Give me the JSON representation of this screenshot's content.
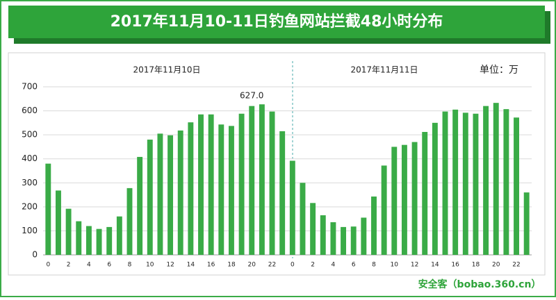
{
  "chart_data": {
    "type": "bar",
    "title": "2017年11月10-11日钓鱼网站拦截48小时分布",
    "annotations": {
      "day1": "2017年11月10日",
      "day2": "2017年11月11日",
      "unit": "单位：万",
      "watermark": "安全客（bobao.360.cn）"
    },
    "categories": [
      "0",
      null,
      "2",
      null,
      "4",
      null,
      "6",
      null,
      "8",
      null,
      "10",
      null,
      "12",
      null,
      "14",
      null,
      "16",
      null,
      "18",
      null,
      "20",
      null,
      "22",
      null,
      "0",
      null,
      "2",
      null,
      "4",
      null,
      "6",
      null,
      "8",
      null,
      "10",
      null,
      "12",
      null,
      "14",
      null,
      "16",
      null,
      "18",
      null,
      "20",
      null,
      "22",
      null
    ],
    "values": [
      380,
      268,
      192,
      140,
      120,
      108,
      116,
      160,
      278,
      408,
      480,
      505,
      498,
      518,
      552,
      585,
      585,
      543,
      537,
      588,
      620,
      627,
      597,
      515,
      392,
      300,
      216,
      165,
      136,
      116,
      118,
      155,
      243,
      372,
      450,
      458,
      470,
      512,
      550,
      597,
      605,
      592,
      588,
      620,
      633,
      607,
      572,
      260
    ],
    "value_labels": [
      null,
      null,
      null,
      null,
      null,
      null,
      null,
      null,
      null,
      null,
      null,
      null,
      null,
      null,
      null,
      null,
      null,
      null,
      null,
      null,
      null,
      "627.0",
      null,
      null,
      null,
      null,
      null,
      null,
      null,
      null,
      null,
      null,
      null,
      null,
      null,
      null,
      null,
      null,
      null,
      null,
      null,
      null,
      null,
      null,
      null,
      null,
      null,
      null
    ],
    "color": "#3aab47",
    "ylim": [
      0,
      700
    ],
    "yticks": [
      0,
      100,
      200,
      300,
      400,
      500,
      600,
      700
    ],
    "grid": true
  }
}
